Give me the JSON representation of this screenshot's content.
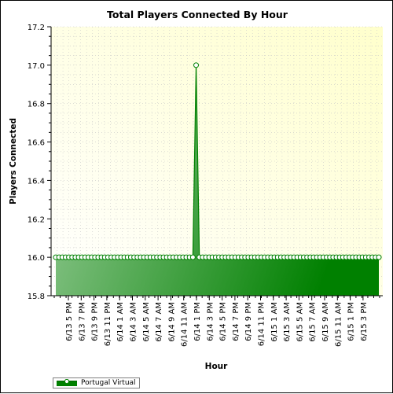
{
  "chart_data": {
    "type": "area",
    "title": "Total Players Connected By Hour",
    "xlabel": "Hour",
    "ylabel": "Players Connected",
    "ylim": [
      15.8,
      17.2
    ],
    "yticks": [
      "15.8",
      "16.0",
      "16.2",
      "16.4",
      "16.6",
      "16.8",
      "17.0",
      "17.2"
    ],
    "grid": true,
    "legend_position": "bottom-left",
    "x_tick_labels": [
      "6/13 5 PM",
      "6/13 7 PM",
      "6/13 9 PM",
      "6/13 11 PM",
      "6/14 1 AM",
      "6/14 3 AM",
      "6/14 5 AM",
      "6/14 7 AM",
      "6/14 9 AM",
      "6/14 11 AM",
      "6/14 1 PM",
      "6/14 3 PM",
      "6/14 5 PM",
      "6/14 7 PM",
      "6/14 9 PM",
      "6/14 11 PM",
      "6/15 1 AM",
      "6/15 3 AM",
      "6/15 5 AM",
      "6/15 7 AM",
      "6/15 9 AM",
      "6/15 11 AM",
      "6/15 1 PM",
      "6/15 3 PM"
    ],
    "series": [
      {
        "name": "Portugal Virtual",
        "color": "#008000",
        "values": [
          16,
          16,
          16,
          16,
          16,
          16,
          16,
          16,
          16,
          16,
          16,
          16,
          16,
          16,
          16,
          16,
          16,
          16,
          16,
          16,
          16,
          16,
          16,
          16,
          16,
          16,
          16,
          16,
          16,
          16,
          16,
          16,
          16,
          16,
          16,
          16,
          16,
          16,
          16,
          16,
          16,
          16,
          16,
          17,
          16,
          16,
          16,
          16,
          16,
          16,
          16,
          16,
          16,
          16,
          16,
          16,
          16,
          16,
          16,
          16,
          16,
          16,
          16,
          16,
          16,
          16,
          16,
          16,
          16,
          16,
          16,
          16,
          16,
          16,
          16,
          16,
          16,
          16,
          16,
          16,
          16,
          16,
          16,
          16,
          16,
          16,
          16,
          16,
          16,
          16,
          16,
          16,
          16,
          16,
          16,
          16,
          16,
          16,
          16,
          16
        ]
      }
    ]
  },
  "colors": {
    "plot_bg_light": "#ffffff",
    "plot_bg_tint": "#ffffcc",
    "area_light": "#99cc99",
    "area_dark": "#008000",
    "grid": "#c8c8c8"
  }
}
